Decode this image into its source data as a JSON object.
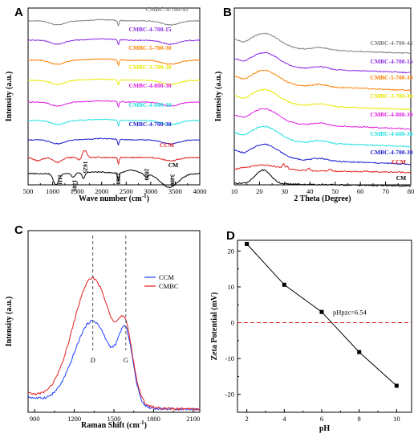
{
  "panels": [
    {
      "id": "A",
      "letter": "A"
    },
    {
      "id": "B",
      "letter": "B"
    },
    {
      "id": "C",
      "letter": "C"
    },
    {
      "id": "D",
      "letter": "D"
    }
  ],
  "chart_data": [
    {
      "panel": "A",
      "type": "line",
      "title": "",
      "xlabel": "Wave number (cm-1)",
      "ylabel": "Intensity (a.u.)",
      "xlim": [
        500,
        4000
      ],
      "xticks": [
        500,
        1000,
        1500,
        2000,
        2500,
        3000,
        3500,
        4000
      ],
      "yticks_shown": false,
      "series": [
        {
          "name": "CMBC-4-700-45",
          "color": "#808080"
        },
        {
          "name": "CMBC-4-700-15",
          "color": "#8a2be2"
        },
        {
          "name": "CMBC-5-700-30",
          "color": "#ff7f00"
        },
        {
          "name": "CMBC-3-700-30",
          "color": "#e8e800"
        },
        {
          "name": "CMBC-4-800-30",
          "color": "#e020e0"
        },
        {
          "name": "CMBC-4-600-30",
          "color": "#20e0e0"
        },
        {
          "name": "CMBC-4-700-30",
          "color": "#1a1acd"
        },
        {
          "name": "CCM",
          "color": "#e02020"
        },
        {
          "name": "CM",
          "color": "#000000"
        }
      ],
      "annotations": [
        "1110",
        "1405",
        "1625",
        "2300",
        "2880",
        "3400"
      ]
    },
    {
      "panel": "B",
      "type": "line",
      "title": "",
      "xlabel": "2 Theta (Degree)",
      "ylabel": "Intensity (a.u.)",
      "xlim": [
        10,
        80
      ],
      "xticks": [
        10,
        20,
        30,
        40,
        50,
        60,
        70,
        80
      ],
      "yticks_shown": false,
      "series": [
        {
          "name": "CMBC-4-700-45",
          "color": "#808080"
        },
        {
          "name": "CMBC-4-700-15",
          "color": "#8a2be2"
        },
        {
          "name": "CMBC-5-700-30",
          "color": "#ff7f00"
        },
        {
          "name": "CMBC-3-700-30",
          "color": "#e8e800"
        },
        {
          "name": "CMBC-4-800-30",
          "color": "#e020e0"
        },
        {
          "name": "CMBC-4-600-30",
          "color": "#20e0e0"
        },
        {
          "name": "CMBC-4-700-30",
          "color": "#1a1acd"
        },
        {
          "name": "CCM",
          "color": "#e02020"
        },
        {
          "name": "CM",
          "color": "#000000"
        }
      ]
    },
    {
      "panel": "C",
      "type": "line",
      "title": "",
      "xlabel": "Raman Shift (cm-1)",
      "ylabel": "Intensity (a.u.)",
      "xlim": [
        850,
        2150
      ],
      "xticks": [
        900,
        1200,
        1500,
        1800,
        2100
      ],
      "yticks_shown": false,
      "legend_position": "right",
      "series": [
        {
          "name": "CCM",
          "color": "#1f3fff"
        },
        {
          "name": "CMBC",
          "color": "#e02020"
        }
      ],
      "annotations": [
        {
          "label": "D",
          "x": 1340
        },
        {
          "label": "G",
          "x": 1590
        }
      ]
    },
    {
      "panel": "D",
      "type": "line",
      "title": "",
      "xlabel": "pH",
      "ylabel": "Zeta Potential (mV)",
      "xlim": [
        1.5,
        10.8
      ],
      "ylim": [
        -25,
        23
      ],
      "xticks": [
        2,
        4,
        6,
        8,
        10
      ],
      "yticks": [
        -20,
        -10,
        0,
        10,
        20
      ],
      "series": [
        {
          "name": "",
          "x": [
            2,
            4,
            6,
            8,
            10
          ],
          "y": [
            22,
            10.6,
            3,
            -8.2,
            -17.6
          ],
          "color": "#000000"
        }
      ],
      "reference_line": {
        "y": 0,
        "color": "#e02020"
      },
      "annotation": "pHpzc=6.54"
    }
  ]
}
